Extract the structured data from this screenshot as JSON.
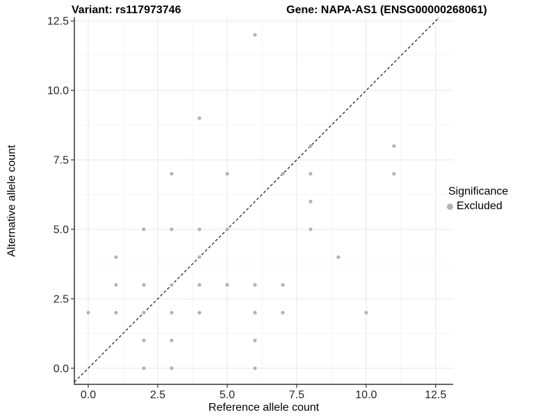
{
  "chart_data": {
    "type": "scatter",
    "title_left": "Variant: rs117973746",
    "title_right": "Gene: NAPA-AS1 (ENSG00000268061)",
    "xlabel": "Reference allele count",
    "ylabel": "Alternative allele count",
    "x_ticks": {
      "values": [
        0,
        2.5,
        5,
        7.5,
        10,
        12.5
      ],
      "labels": [
        "0.0",
        "2.5",
        "5.0",
        "7.5",
        "10.0",
        "12.5"
      ]
    },
    "y_ticks": {
      "values": [
        0,
        2.5,
        5,
        7.5,
        10,
        12.5
      ],
      "labels": [
        "0.0",
        "2.5",
        "5.0",
        "7.5",
        "10.0",
        "12.5"
      ]
    },
    "xlim": [
      -0.5,
      13.13
    ],
    "ylim": [
      -0.58,
      12.63
    ],
    "grid": {
      "major": true,
      "minor": true
    },
    "points": [
      [
        2,
        0
      ],
      [
        3,
        0
      ],
      [
        6,
        0
      ],
      [
        2,
        1
      ],
      [
        3,
        1
      ],
      [
        6,
        1
      ],
      [
        0,
        2
      ],
      [
        1,
        2
      ],
      [
        2,
        2
      ],
      [
        3,
        2
      ],
      [
        4,
        2
      ],
      [
        6,
        2
      ],
      [
        7,
        2
      ],
      [
        10,
        2
      ],
      [
        1,
        3
      ],
      [
        2,
        3
      ],
      [
        3,
        3
      ],
      [
        4,
        3
      ],
      [
        5,
        3
      ],
      [
        6,
        3
      ],
      [
        7,
        3
      ],
      [
        1,
        4
      ],
      [
        4,
        4
      ],
      [
        9,
        4
      ],
      [
        2,
        5
      ],
      [
        3,
        5
      ],
      [
        4,
        5
      ],
      [
        5,
        5
      ],
      [
        8,
        5
      ],
      [
        8,
        6
      ],
      [
        3,
        7
      ],
      [
        5,
        7
      ],
      [
        7,
        7
      ],
      [
        8,
        7
      ],
      [
        11,
        7
      ],
      [
        8,
        8
      ],
      [
        11,
        8
      ],
      [
        4,
        9
      ],
      [
        6,
        12
      ]
    ],
    "identity_line": {
      "equation": "y = x",
      "style": "dashed",
      "color": "#000000"
    },
    "legend": {
      "title": "Significance",
      "position": "right",
      "items": [
        {
          "label": "Excluded",
          "color": "#b3b3b3"
        }
      ]
    },
    "colors": {
      "point": "#b3b3b3",
      "grid_major": "#e7e7e7",
      "grid_minor": "#f4f4f4",
      "axis": "#333333",
      "tick_label": "#262626"
    }
  }
}
